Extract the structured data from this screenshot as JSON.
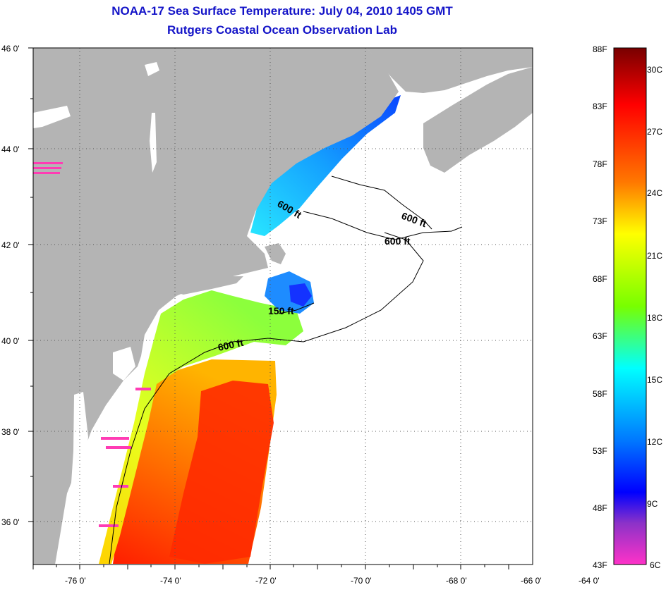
{
  "header": {
    "title": "NOAA-17 Sea Surface Temperature:  July 04, 2010 1405 GMT",
    "subtitle": "Rutgers Coastal Ocean Observation Lab"
  },
  "map": {
    "lon_labels": [
      "-76 0'",
      "-74 0'",
      "-72 0'",
      "-70 0'",
      "-68 0'",
      "-66 0'",
      "-64 0'"
    ],
    "lat_labels": [
      "46 0'",
      "44 0'",
      "42 0'",
      "40 0'",
      "38 0'",
      "36 0'"
    ],
    "contour_labels": [
      "600 ft",
      "600 ft",
      "600 ft",
      "150 ft",
      "600 ft"
    ],
    "land_color": "#b4b4b4",
    "ocean_no_data_color": "#ffffff"
  },
  "colorbar": {
    "fahrenheit_labels": [
      "88F",
      "83F",
      "78F",
      "73F",
      "68F",
      "63F",
      "58F",
      "53F",
      "48F",
      "43F"
    ],
    "celsius_labels": [
      "30C",
      "27C",
      "24C",
      "21C",
      "18C",
      "15C",
      "12C",
      "9C",
      "6C"
    ],
    "colors_top_to_bottom": [
      "#780000",
      "#ff0000",
      "#ff7800",
      "#ffff00",
      "#78ff00",
      "#00ffff",
      "#0078ff",
      "#0000ff",
      "#8c32c8",
      "#ff32c8"
    ]
  }
}
